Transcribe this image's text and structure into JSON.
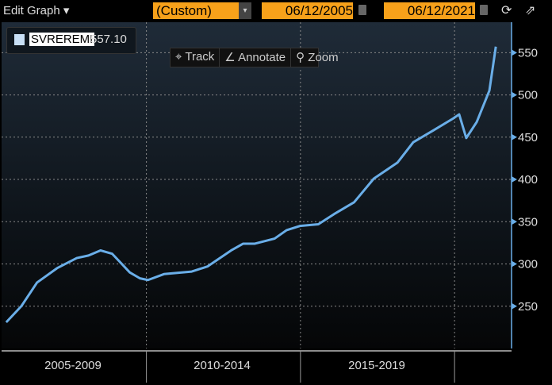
{
  "toolbar": {
    "edit_graph": "Edit Graph ▾",
    "preset": "(Custom)",
    "preset_arrow": "▾",
    "start_date": "06/12/2005",
    "end_date": "06/12/2021",
    "refresh_icon": "⟳",
    "popout_icon": "⇗"
  },
  "legend": {
    "ticker": "SVREREMI",
    "value": "557.10",
    "color": "#c8dff5"
  },
  "tools": {
    "track": "⌖ Track",
    "annotate": "∠ Annotate",
    "zoom": "⚲ Zoom"
  },
  "colors": {
    "line": "#6aaee8",
    "accent": "#f7a11a"
  },
  "chart_data": {
    "type": "line",
    "title": "",
    "xlabel": "",
    "ylabel": "",
    "series": [
      {
        "name": "SVREREMI",
        "x": [
          2005.45,
          2005.94,
          2006.45,
          2007.1,
          2007.74,
          2008.12,
          2008.51,
          2008.89,
          2009.15,
          2009.46,
          2009.79,
          2010.05,
          2010.57,
          2011.47,
          2011.98,
          2012.75,
          2013.14,
          2013.52,
          2014.16,
          2014.55,
          2014.99,
          2015.58,
          2016.09,
          2016.74,
          2017.38,
          2018.15,
          2018.66,
          2019.31,
          2019.95,
          2020.15,
          2020.38,
          2020.72,
          2021.13,
          2021.34
        ],
        "values": [
          231,
          250,
          278,
          295,
          307,
          310,
          316,
          312,
          302,
          290,
          283,
          281,
          288,
          291,
          297,
          316,
          324,
          324,
          330,
          340,
          345,
          347,
          359,
          373,
          401,
          420,
          444,
          458,
          472,
          477,
          449,
          468,
          505,
          557.1
        ]
      }
    ],
    "xlim": [
      2005.3,
      2021.85
    ],
    "ylim": [
      200,
      586
    ],
    "yticks": [
      250,
      300,
      350,
      400,
      450,
      500,
      550
    ],
    "xgrid": [
      2010,
      2015,
      2020
    ],
    "period_labels": [
      "2005-2009",
      "2010-2014",
      "2015-2019"
    ],
    "grid": true,
    "legend_position": "top-left"
  }
}
